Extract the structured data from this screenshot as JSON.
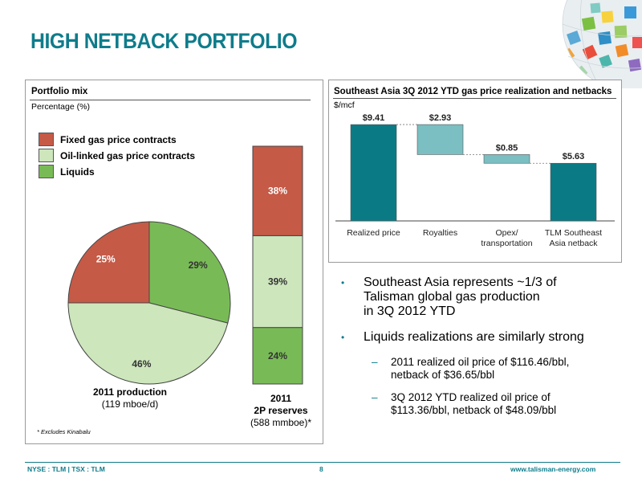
{
  "title": "HIGH NETBACK PORTFOLIO",
  "colors": {
    "accent": "#0e7c8b",
    "fixed_gas": "#c55a47",
    "oil_linked": "#cde6bc",
    "liquids": "#78bb56",
    "bar_teal": "#0a7b84",
    "bar_light": "#7bbfc2"
  },
  "portfolio": {
    "title": "Portfolio mix",
    "subtitle": "Percentage (%)",
    "legend": [
      "Fixed gas price contracts",
      "Oil-linked gas price contracts",
      "Liquids"
    ],
    "footnote": "* Excludes Kinabalu",
    "production_caption": {
      "line1": "2011 production",
      "line2": "(119 mboe/d)"
    },
    "reserves_caption": {
      "line1": "2011",
      "line2": "2P reserves",
      "line3": "(588 mmboe)*"
    }
  },
  "chart_data": [
    {
      "type": "pie",
      "title": "2011 production",
      "categories": [
        "Fixed gas price contracts",
        "Oil-linked gas price contracts",
        "Liquids"
      ],
      "values": [
        25,
        46,
        29
      ],
      "labels": [
        "25%",
        "46%",
        "29%"
      ]
    },
    {
      "type": "bar",
      "stacked": true,
      "title": "2011 2P reserves",
      "categories": [
        "2011 2P reserves"
      ],
      "series": [
        {
          "name": "Liquids",
          "values": [
            24
          ],
          "label": "24%"
        },
        {
          "name": "Oil-linked gas price contracts",
          "values": [
            39
          ],
          "label": "39%"
        },
        {
          "name": "Fixed gas price contracts",
          "values": [
            38
          ],
          "label": "38%"
        }
      ]
    },
    {
      "type": "bar",
      "waterfall": true,
      "title": "Southeast Asia 3Q 2012 YTD gas price realization and netbacks",
      "ylabel": "$/mcf",
      "categories": [
        "Realized price",
        "Royalties",
        "Opex/ transportation",
        "TLM Southeast Asia netback"
      ],
      "category_lines": [
        [
          "Realized price"
        ],
        [
          "Royalties"
        ],
        [
          "Opex/",
          "transportation"
        ],
        [
          "TLM Southeast",
          "Asia netback"
        ]
      ],
      "values": [
        9.41,
        -2.93,
        -0.85,
        5.63
      ],
      "labels": [
        "$9.41",
        "$2.93",
        "$0.85",
        "$5.63"
      ]
    }
  ],
  "bullets": [
    {
      "text": [
        "Southeast Asia represents ~1/3 of",
        "Talisman global gas production",
        "in 3Q 2012 YTD"
      ]
    },
    {
      "text": [
        "Liquids realizations are similarly strong"
      ],
      "sub": [
        [
          "2011 realized oil price of $116.46/bbl,",
          "netback of $36.65/bbl"
        ],
        [
          "3Q 2012 YTD realized oil price of",
          "$113.36/bbl, netback of $48.09/bbl"
        ]
      ]
    }
  ],
  "bullet_glyph": "•",
  "dash_glyph": "–",
  "footer": {
    "ticker": "NYSE : TLM | TSX : TLM",
    "page": "8",
    "url": "www.talisman-energy.com"
  }
}
